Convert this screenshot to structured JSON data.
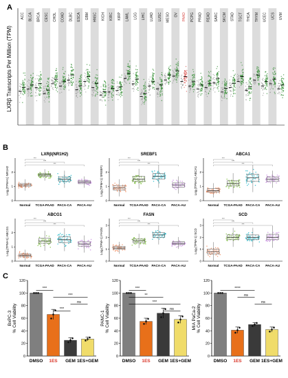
{
  "panel_labels": [
    "A",
    "B",
    "C"
  ],
  "colors": {
    "normal": "#f08a5d",
    "tcga": "#7cbf3c",
    "ca": "#1fb7c9",
    "au": "#c88be0",
    "panelA_green": "#2e8b2e",
    "panelA_red": "#d9534f",
    "stripe": "#dcdcdc",
    "bar_dmso": "#7f7f7f",
    "bar_1es": "#e8701a",
    "bar_gem": "#3a3a3a",
    "bar_combo": "#f0dc6a"
  },
  "chart_data": [
    {
      "panel": "A",
      "type": "scatter",
      "ylabel": "LXRβ Transcripts Per Million (TPM)",
      "categories": [
        "ACC",
        "BLCA",
        "BRCA",
        "CESC",
        "CHOL",
        "COAD",
        "DLBC",
        "ESCA",
        "GBM",
        "HNSC",
        "KICH",
        "KIRC",
        "KIRP",
        "LAML",
        "LGG",
        "LIHC",
        "LUAD",
        "LUSC",
        "MESO",
        "OV",
        "PAAD",
        "PCPG",
        "PRAD",
        "READ",
        "SARC",
        "SKCM",
        "STAD",
        "TGCT",
        "THCA",
        "THYM",
        "UCEC",
        "UCS",
        "UVM"
      ],
      "highlight": "PAAD",
      "medians": [
        45,
        48,
        50,
        42,
        55,
        52,
        60,
        47,
        58,
        50,
        40,
        44,
        46,
        62,
        55,
        38,
        52,
        48,
        60,
        65,
        58,
        52,
        48,
        50,
        56,
        44,
        50,
        58,
        46,
        60,
        52,
        55,
        48
      ],
      "grid": false
    },
    {
      "panel": "B",
      "type": "box",
      "title": "LXRβ(NR1H2)",
      "ylabel": "Log₂(TPM+1) NR1H2",
      "categories": [
        "Normal",
        "TCGA-PAAD",
        "PACA-CA",
        "PACA-AU"
      ],
      "medians": [
        1.1,
        1.8,
        1.5,
        1.3
      ],
      "q1": [
        1.0,
        1.7,
        1.35,
        1.2
      ],
      "q3": [
        1.2,
        1.9,
        1.65,
        1.4
      ],
      "ylim": [
        0,
        2.5
      ]
    },
    {
      "panel": "B",
      "type": "box",
      "title": "SREBF1",
      "ylabel": "Log₂(TPM+1) SREBF1",
      "categories": [
        "Normal",
        "TCGA-PAAD",
        "PACA-CA",
        "PACA-AU"
      ],
      "medians": [
        0.9,
        1.5,
        1.7,
        1.1
      ],
      "q1": [
        0.75,
        1.35,
        1.5,
        0.95
      ],
      "q3": [
        1.05,
        1.7,
        1.9,
        1.25
      ],
      "ylim": [
        0,
        2.5
      ]
    },
    {
      "panel": "B",
      "type": "box",
      "title": "ABCA1",
      "ylabel": "Log₂(TPM+1) ABCA1",
      "categories": [
        "Normal",
        "TCGA-PAAD",
        "PACA-CA",
        "PACA-AU"
      ],
      "medians": [
        0.7,
        1.2,
        1.6,
        1.5
      ],
      "q1": [
        0.6,
        1.05,
        1.35,
        1.35
      ],
      "q3": [
        0.85,
        1.4,
        1.85,
        1.65
      ],
      "ylim": [
        0,
        2.5
      ]
    },
    {
      "panel": "B",
      "type": "box",
      "title": "ABCG1",
      "ylabel": "Log₂(TPM+1) ABCG1",
      "categories": [
        "Normal",
        "TCGA-PAAD",
        "PACA-CA",
        "PACA-AU"
      ],
      "medians": [
        0.4,
        1.4,
        1.5,
        1.2
      ],
      "q1": [
        0.3,
        1.25,
        1.3,
        1.05
      ],
      "q3": [
        0.5,
        1.6,
        1.7,
        1.35
      ],
      "ylim": [
        0,
        2.5
      ]
    },
    {
      "panel": "B",
      "type": "box",
      "title": "FASN",
      "ylabel": "Log₂(TPM+1) FASN",
      "categories": [
        "Normal",
        "TCGA-PAAD",
        "PACA-CA",
        "PACA-AU"
      ],
      "medians": [
        1.1,
        1.7,
        2.2,
        1.5
      ],
      "q1": [
        1.0,
        1.55,
        2.0,
        1.4
      ],
      "q3": [
        1.25,
        1.85,
        2.4,
        1.65
      ],
      "ylim": [
        0,
        3
      ]
    },
    {
      "panel": "B",
      "type": "box",
      "title": "SCD",
      "ylabel": "Log₂(TPM+1) SCD",
      "categories": [
        "Normal",
        "TCGA-PAAD",
        "PACA-CA",
        "PACA-AU"
      ],
      "medians": [
        0.8,
        2.0,
        2.0,
        2.0
      ],
      "q1": [
        0.6,
        1.8,
        1.8,
        1.8
      ],
      "q3": [
        1.0,
        2.2,
        2.2,
        2.25
      ],
      "ylim": [
        0,
        3
      ]
    },
    {
      "panel": "C",
      "type": "bar",
      "ylabel": "BxPC-3\n% Cell Viability",
      "categories": [
        "DMSO",
        "1ES",
        "GEM",
        "1ES+GEM"
      ],
      "values": [
        100,
        66,
        25,
        27
      ],
      "errors": [
        0,
        8,
        4,
        3
      ],
      "ylim": [
        0,
        120
      ],
      "yticks": [
        0,
        20,
        40,
        60,
        80,
        100,
        120
      ],
      "sig": [
        {
          "from": 0,
          "to": 1,
          "label": "***"
        },
        {
          "from": 1,
          "to": 3,
          "label": "***"
        },
        {
          "from": 2,
          "to": 3,
          "label": "ns"
        },
        {
          "from": 1,
          "to": 2,
          "label": "***"
        }
      ]
    },
    {
      "panel": "C",
      "type": "bar",
      "ylabel": "PANC-1\n% Cell Viability",
      "categories": [
        "DMSO",
        "1ES",
        "GEM",
        "1ES+GEM"
      ],
      "values": [
        100,
        55,
        68,
        58
      ],
      "errors": [
        0,
        5,
        8,
        6
      ],
      "ylim": [
        0,
        120
      ],
      "yticks": [
        0,
        20,
        40,
        60,
        80,
        100,
        120
      ],
      "sig": [
        {
          "from": 0,
          "to": 1,
          "label": "***"
        },
        {
          "from": 0,
          "to": 2,
          "label": "**"
        },
        {
          "from": 0,
          "to": 3,
          "label": "***"
        },
        {
          "from": 2,
          "to": 3,
          "label": "ns"
        }
      ]
    },
    {
      "panel": "C",
      "type": "bar",
      "ylabel": "MIA PaCa-2\n% Cell Viability",
      "categories": [
        "DMSO",
        "1ES",
        "GEM",
        "1ES+GEM"
      ],
      "values": [
        100,
        41,
        50,
        42
      ],
      "errors": [
        0,
        5,
        3,
        4
      ],
      "ylim": [
        0,
        120
      ],
      "yticks": [
        0,
        20,
        40,
        60,
        80,
        100,
        120
      ],
      "sig": [
        {
          "from": 0,
          "to": 2,
          "label": "****"
        },
        {
          "from": 1,
          "to": 2,
          "label": "ns"
        },
        {
          "from": 2,
          "to": 3,
          "label": "ns"
        }
      ]
    }
  ]
}
